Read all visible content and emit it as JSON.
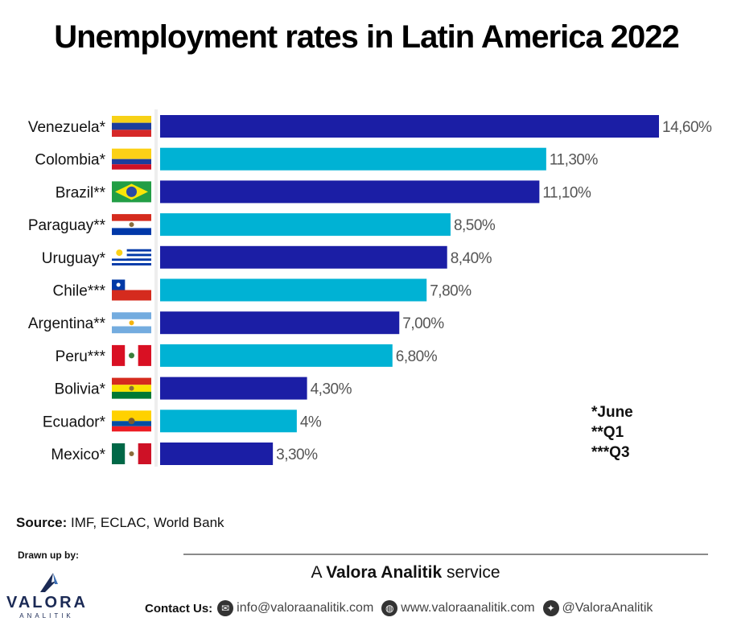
{
  "title": "Unemployment rates in Latin America 2022",
  "chart_data": {
    "type": "bar",
    "orientation": "horizontal",
    "title": "Unemployment rates in Latin America 2022",
    "categories": [
      "Venezuela*",
      "Colombia*",
      "Brazil**",
      "Paraguay**",
      "Uruguay*",
      "Chile***",
      "Argentina**",
      "Peru***",
      "Bolivia*",
      "Ecuador*",
      "Mexico*"
    ],
    "values": [
      14.6,
      11.3,
      11.1,
      8.5,
      8.4,
      7.8,
      7.0,
      6.8,
      4.3,
      4.0,
      3.3
    ],
    "value_labels": [
      "14,60%",
      "11,30%",
      "11,10%",
      "8,50%",
      "8,40%",
      "7,80%",
      "7,00%",
      "6,80%",
      "4,30%",
      "4%",
      "3,30%"
    ],
    "flags": [
      "venezuela-flag",
      "colombia-flag",
      "brazil-flag",
      "paraguay-flag",
      "uruguay-flag",
      "chile-flag",
      "argentina-flag",
      "peru-flag",
      "bolivia-flag",
      "ecuador-flag",
      "mexico-flag"
    ],
    "bar_colors": [
      "#1b1ea5",
      "#00b2d4"
    ],
    "xlim": [
      0,
      14.6
    ],
    "grid": false
  },
  "notes": [
    "*June",
    "**Q1",
    "***Q3"
  ],
  "source": {
    "label": "Source:",
    "text": "IMF, ECLAC, World Bank"
  },
  "drawn_by": "Drawn up by:",
  "service": {
    "prefix": "A",
    "brand": "Valora Analitik",
    "suffix": "service"
  },
  "logo": {
    "word": "VALORA",
    "sub": "ANALITIK"
  },
  "contact": {
    "label": "Contact Us:",
    "email": "info@valoraanalitik.com",
    "web": "www.valoraanalitik.com",
    "twitter": "@ValoraAnalitik"
  }
}
